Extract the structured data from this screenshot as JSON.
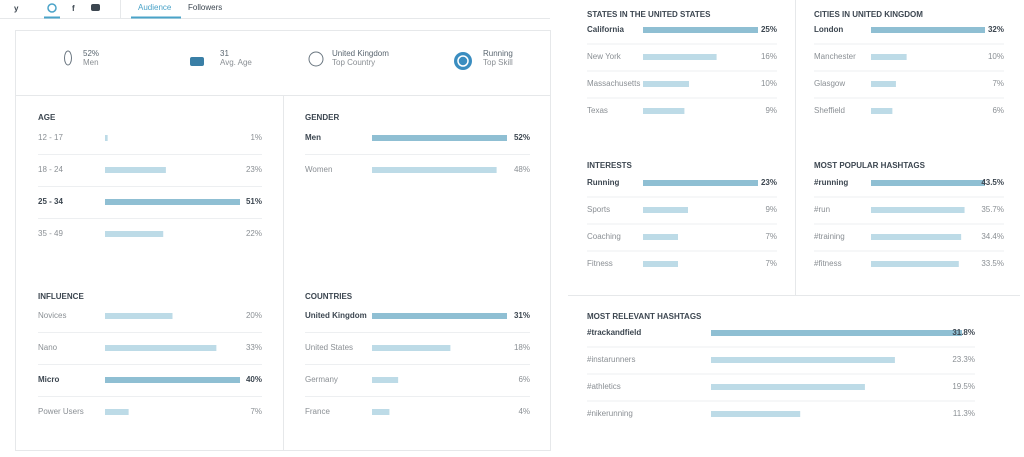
{
  "tabs": {
    "audience": "Audience",
    "followers": "Followers"
  },
  "summary": [
    {
      "value": "52%",
      "label": "Men"
    },
    {
      "value": "31",
      "label": "Avg. Age"
    },
    {
      "value": "United Kingdom",
      "label": "Top Country"
    },
    {
      "value": "Running",
      "label": "Top Skill"
    }
  ],
  "panels": [
    {
      "title": "AGE",
      "labels": [
        "12 - 17",
        "18 - 24",
        "25 - 34",
        "35 - 49"
      ],
      "values": [
        1,
        23,
        51,
        22
      ],
      "value_labels": [
        "1%",
        "23%",
        "51%",
        "22%"
      ]
    },
    {
      "title": "GENDER",
      "labels": [
        "Men",
        "Women"
      ],
      "values": [
        52,
        48
      ],
      "value_labels": [
        "52%",
        "48%"
      ]
    },
    {
      "title": "INFLUENCE",
      "labels": [
        "Novices",
        "Nano",
        "Micro",
        "Power Users"
      ],
      "values": [
        20,
        33,
        40,
        7
      ],
      "value_labels": [
        "20%",
        "33%",
        "40%",
        "7%"
      ]
    },
    {
      "title": "COUNTRIES",
      "labels": [
        "United Kingdom",
        "United States",
        "Germany",
        "France"
      ],
      "values": [
        31,
        18,
        6,
        4
      ],
      "value_labels": [
        "31%",
        "18%",
        "6%",
        "4%"
      ]
    },
    {
      "title": "STATES IN THE UNITED STATES",
      "labels": [
        "California",
        "New York",
        "Massachusetts",
        "Texas"
      ],
      "values": [
        25,
        16,
        10,
        9
      ],
      "value_labels": [
        "25%",
        "16%",
        "10%",
        "9%"
      ]
    },
    {
      "title": "CITIES IN UNITED KINGDOM",
      "labels": [
        "London",
        "Manchester",
        "Glasgow",
        "Sheffield"
      ],
      "values": [
        32,
        10,
        7,
        6
      ],
      "value_labels": [
        "32%",
        "10%",
        "7%",
        "6%"
      ]
    },
    {
      "title": "INTERESTS",
      "labels": [
        "Running",
        "Sports",
        "Coaching",
        "Fitness"
      ],
      "values": [
        23,
        9,
        7,
        7
      ],
      "value_labels": [
        "23%",
        "9%",
        "7%",
        "7%"
      ]
    },
    {
      "title": "MOST POPULAR HASHTAGS",
      "labels": [
        "#running",
        "#run",
        "#training",
        "#fitness"
      ],
      "values": [
        43.5,
        35.7,
        34.4,
        33.5
      ],
      "value_labels": [
        "43.5%",
        "35.7%",
        "34.4%",
        "33.5%"
      ]
    },
    {
      "title": "MOST RELEVANT HASHTAGS",
      "labels": [
        "#trackandfield",
        "#instarunners",
        "#athletics",
        "#nikerunning"
      ],
      "values": [
        31.8,
        23.3,
        19.5,
        11.3
      ],
      "value_labels": [
        "31.8%",
        "23.3%",
        "19.5%",
        "11.3%"
      ]
    }
  ]
}
